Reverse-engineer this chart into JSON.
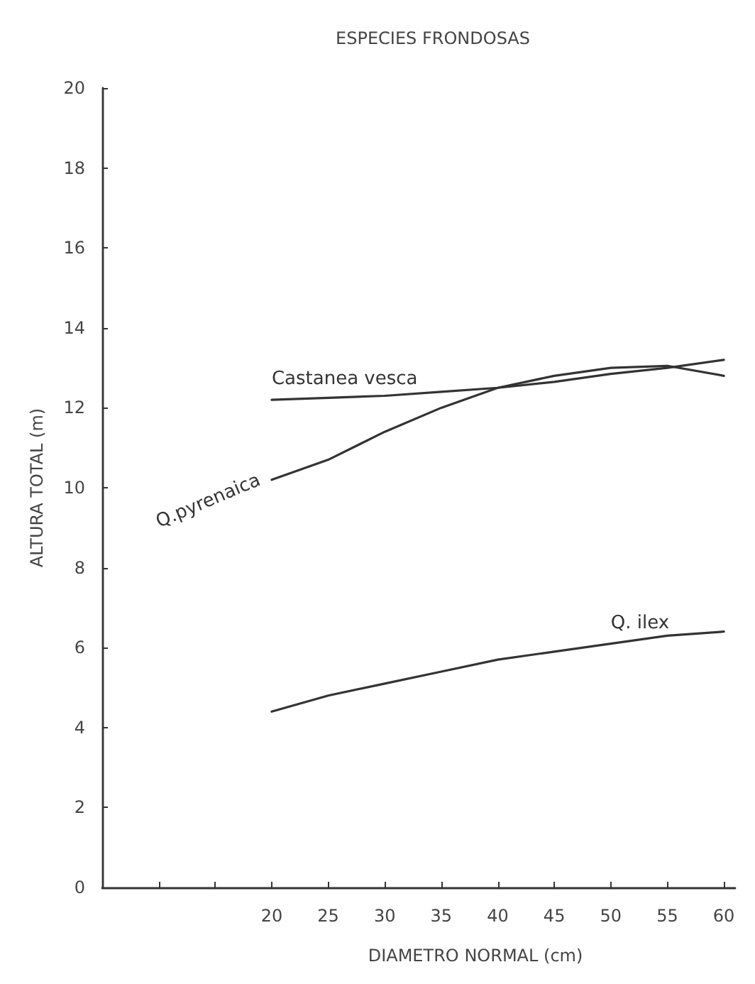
{
  "chart_data": {
    "type": "line",
    "title": "ESPECIES FRONDOSAS",
    "xlabel": "DIAMETRO NORMAL (cm)",
    "ylabel": "ALTURA TOTAL (m)",
    "x": [
      20,
      25,
      30,
      35,
      40,
      45,
      50,
      55,
      60
    ],
    "series": [
      {
        "name": "Castanea vesca",
        "color": "#333333",
        "values": [
          12.2,
          12.25,
          12.3,
          12.4,
          12.5,
          12.65,
          12.85,
          13.0,
          13.2
        ]
      },
      {
        "name": "Q.pyrenaica",
        "color": "#333333",
        "values": [
          10.2,
          10.7,
          11.4,
          12.0,
          12.5,
          12.8,
          13.0,
          13.05,
          12.8
        ]
      },
      {
        "name": "Q. ilex",
        "color": "#333333",
        "values": [
          4.4,
          4.8,
          5.1,
          5.4,
          5.7,
          5.9,
          6.1,
          6.3,
          6.4
        ]
      }
    ],
    "xlim": [
      5,
      61
    ],
    "xticks": [
      {
        "value": 10,
        "label": null
      },
      {
        "value": 15,
        "label": null
      },
      20,
      25,
      30,
      35,
      40,
      45,
      50,
      55,
      60
    ],
    "ylim": [
      0,
      20
    ],
    "yticks": [
      0,
      2,
      4,
      6,
      8,
      10,
      12,
      14,
      16,
      18,
      20
    ],
    "grid": false,
    "legend": false,
    "marker": "none",
    "line_style": "solid"
  }
}
